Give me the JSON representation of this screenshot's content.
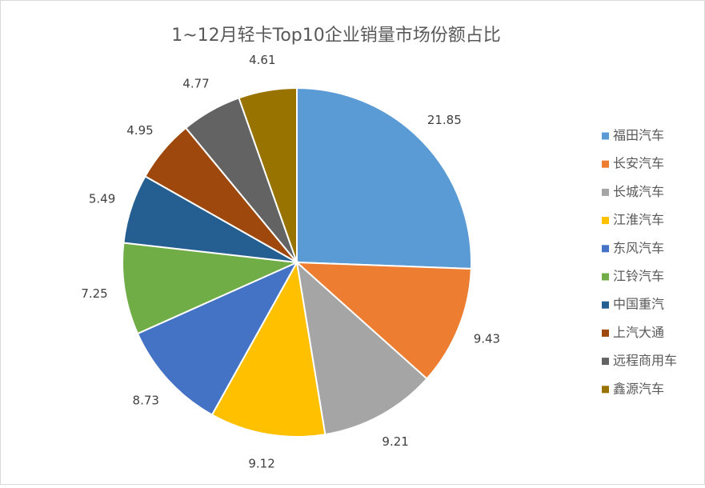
{
  "chart_data": {
    "type": "pie",
    "title": "1~12月轻卡Top10企业销量市场份额占比",
    "categories": [
      "福田汽车",
      "长安汽车",
      "长城汽车",
      "江淮汽车",
      "东风汽车",
      "江铃汽车",
      "中国重汽",
      "上汽大通",
      "远程商用车",
      "鑫源汽车"
    ],
    "values": [
      21.85,
      9.43,
      9.21,
      9.12,
      8.73,
      7.25,
      5.49,
      4.95,
      4.77,
      4.61
    ],
    "colors": [
      "#5b9bd5",
      "#ed7d31",
      "#a5a5a5",
      "#ffc000",
      "#4472c4",
      "#70ad47",
      "#255e91",
      "#9e480e",
      "#636363",
      "#997300"
    ],
    "legend": "right"
  }
}
